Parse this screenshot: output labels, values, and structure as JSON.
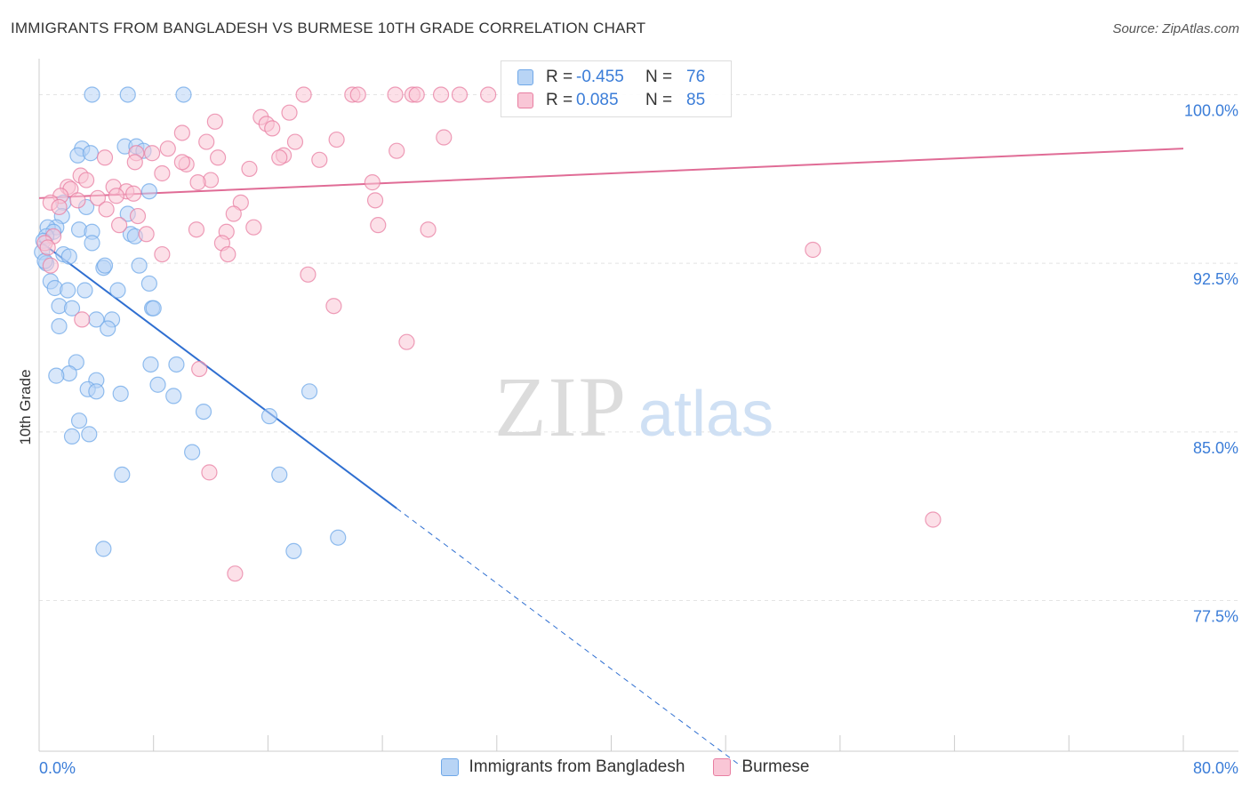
{
  "header": {
    "title": "IMMIGRANTS FROM BANGLADESH VS BURMESE 10TH GRADE CORRELATION CHART",
    "source": "Source: ZipAtlas.com"
  },
  "watermark": {
    "zip": "ZIP",
    "atlas": "atlas"
  },
  "legend": {
    "rows": [
      {
        "r_label": "R =",
        "r_value": "-0.455",
        "n_label": "N =",
        "n_value": "76",
        "color": "#6fa8e8",
        "fill": "#b8d4f5"
      },
      {
        "r_label": "R =",
        "r_value": "0.085",
        "n_label": "N =",
        "n_value": "85",
        "color": "#e87ea1",
        "fill": "#f9c6d6"
      }
    ]
  },
  "bottom_legend": [
    {
      "label": "Immigrants from Bangladesh",
      "color": "#6fa8e8",
      "fill": "#b8d4f5"
    },
    {
      "label": "Burmese",
      "color": "#e87ea1",
      "fill": "#f9c6d6"
    }
  ],
  "chart_data": {
    "type": "scatter",
    "title": "IMMIGRANTS FROM BANGLADESH VS BURMESE 10TH GRADE CORRELATION CHART",
    "xlabel": "",
    "ylabel": "10th Grade",
    "xlim": [
      0,
      80
    ],
    "ylim": [
      70.8,
      101.6
    ],
    "x_tick_labels": {
      "left": "0.0%",
      "right": "80.0%"
    },
    "y_ticks": [
      {
        "value": 100,
        "label": "100.0%"
      },
      {
        "value": 92.5,
        "label": "92.5%"
      },
      {
        "value": 85,
        "label": "85.0%"
      },
      {
        "value": 77.5,
        "label": "77.5%"
      }
    ],
    "grid": true,
    "series": [
      {
        "name": "Immigrants from Bangladesh",
        "color": "#6fa8e8",
        "fill": "#b8d4f5",
        "trend": {
          "x0": 0,
          "y0": 93.5,
          "x1": 25,
          "y1": 81.6,
          "dash_to_x": 49.1
        },
        "points": [
          [
            3.7,
            100.0
          ],
          [
            6.2,
            100.0
          ],
          [
            10.1,
            100.0
          ],
          [
            3.0,
            97.6
          ],
          [
            2.7,
            97.3
          ],
          [
            6.0,
            97.7
          ],
          [
            6.8,
            97.7
          ],
          [
            3.6,
            97.4
          ],
          [
            7.3,
            97.5
          ],
          [
            7.7,
            95.7
          ],
          [
            3.3,
            95.0
          ],
          [
            1.7,
            95.2
          ],
          [
            1.6,
            94.6
          ],
          [
            6.2,
            94.7
          ],
          [
            1.2,
            94.1
          ],
          [
            0.6,
            94.1
          ],
          [
            2.8,
            94.0
          ],
          [
            3.7,
            93.9
          ],
          [
            1.0,
            93.9
          ],
          [
            0.5,
            93.7
          ],
          [
            6.4,
            93.8
          ],
          [
            0.3,
            93.5
          ],
          [
            6.7,
            93.7
          ],
          [
            3.7,
            93.4
          ],
          [
            0.2,
            93.0
          ],
          [
            1.7,
            92.9
          ],
          [
            0.5,
            92.5
          ],
          [
            2.1,
            92.8
          ],
          [
            4.5,
            92.3
          ],
          [
            7.0,
            92.4
          ],
          [
            0.4,
            92.6
          ],
          [
            4.6,
            92.4
          ],
          [
            0.8,
            91.7
          ],
          [
            7.7,
            91.6
          ],
          [
            1.1,
            91.4
          ],
          [
            3.2,
            91.3
          ],
          [
            2.0,
            91.3
          ],
          [
            5.5,
            91.3
          ],
          [
            1.4,
            90.6
          ],
          [
            2.3,
            90.5
          ],
          [
            7.9,
            90.5
          ],
          [
            8.0,
            90.5
          ],
          [
            4.0,
            90.0
          ],
          [
            5.1,
            90.0
          ],
          [
            1.4,
            89.7
          ],
          [
            4.8,
            89.6
          ],
          [
            2.6,
            88.1
          ],
          [
            7.8,
            88.0
          ],
          [
            9.6,
            88.0
          ],
          [
            2.1,
            87.6
          ],
          [
            1.2,
            87.5
          ],
          [
            4.0,
            87.3
          ],
          [
            8.3,
            87.1
          ],
          [
            3.4,
            86.9
          ],
          [
            4.0,
            86.8
          ],
          [
            5.7,
            86.7
          ],
          [
            9.4,
            86.6
          ],
          [
            18.9,
            86.8
          ],
          [
            2.8,
            85.5
          ],
          [
            11.5,
            85.9
          ],
          [
            16.1,
            85.7
          ],
          [
            2.3,
            84.8
          ],
          [
            3.5,
            84.9
          ],
          [
            10.7,
            84.1
          ],
          [
            5.8,
            83.1
          ],
          [
            16.8,
            83.1
          ],
          [
            20.9,
            80.3
          ],
          [
            4.5,
            79.8
          ],
          [
            17.8,
            79.7
          ]
        ]
      },
      {
        "name": "Burmese",
        "color": "#e87ea1",
        "fill": "#f9c6d6",
        "trend": {
          "x0": 0,
          "y0": 95.4,
          "x1": 80,
          "y1": 97.6
        },
        "points": [
          [
            18.5,
            100.0
          ],
          [
            21.9,
            100.0
          ],
          [
            22.3,
            100.0
          ],
          [
            24.9,
            100.0
          ],
          [
            26.1,
            100.0
          ],
          [
            26.4,
            100.0
          ],
          [
            28.1,
            100.0
          ],
          [
            29.4,
            100.0
          ],
          [
            31.4,
            100.0
          ],
          [
            17.5,
            99.2
          ],
          [
            15.5,
            99.0
          ],
          [
            12.3,
            98.8
          ],
          [
            15.9,
            98.7
          ],
          [
            16.3,
            98.5
          ],
          [
            10.0,
            98.3
          ],
          [
            28.3,
            98.1
          ],
          [
            20.8,
            98.0
          ],
          [
            11.7,
            97.9
          ],
          [
            17.9,
            97.9
          ],
          [
            9.0,
            97.6
          ],
          [
            25.0,
            97.5
          ],
          [
            17.1,
            97.3
          ],
          [
            6.8,
            97.4
          ],
          [
            7.9,
            97.4
          ],
          [
            4.6,
            97.2
          ],
          [
            16.8,
            97.2
          ],
          [
            12.5,
            97.2
          ],
          [
            19.6,
            97.1
          ],
          [
            6.7,
            97.0
          ],
          [
            10.3,
            96.9
          ],
          [
            10.0,
            97.0
          ],
          [
            14.7,
            96.7
          ],
          [
            2.9,
            96.4
          ],
          [
            8.6,
            96.5
          ],
          [
            3.3,
            96.2
          ],
          [
            12.0,
            96.2
          ],
          [
            11.1,
            96.1
          ],
          [
            23.3,
            96.1
          ],
          [
            5.2,
            95.9
          ],
          [
            2.0,
            95.9
          ],
          [
            2.2,
            95.8
          ],
          [
            6.1,
            95.7
          ],
          [
            1.5,
            95.5
          ],
          [
            5.4,
            95.5
          ],
          [
            6.6,
            95.6
          ],
          [
            4.1,
            95.4
          ],
          [
            2.7,
            95.3
          ],
          [
            0.8,
            95.2
          ],
          [
            14.1,
            95.2
          ],
          [
            23.5,
            95.3
          ],
          [
            1.4,
            95.0
          ],
          [
            4.7,
            94.9
          ],
          [
            13.6,
            94.7
          ],
          [
            6.9,
            94.6
          ],
          [
            5.6,
            94.2
          ],
          [
            15.0,
            94.1
          ],
          [
            23.7,
            94.2
          ],
          [
            27.2,
            94.0
          ],
          [
            11.0,
            94.0
          ],
          [
            13.1,
            93.9
          ],
          [
            1.0,
            93.7
          ],
          [
            7.5,
            93.8
          ],
          [
            0.4,
            93.4
          ],
          [
            12.8,
            93.4
          ],
          [
            0.6,
            93.2
          ],
          [
            8.6,
            92.9
          ],
          [
            13.2,
            92.9
          ],
          [
            54.1,
            93.1
          ],
          [
            0.8,
            92.4
          ],
          [
            18.8,
            92.0
          ],
          [
            20.6,
            90.6
          ],
          [
            3.0,
            90.0
          ],
          [
            25.7,
            89.0
          ],
          [
            11.2,
            87.8
          ],
          [
            11.9,
            83.2
          ],
          [
            62.5,
            81.1
          ],
          [
            13.7,
            78.7
          ]
        ]
      }
    ]
  }
}
